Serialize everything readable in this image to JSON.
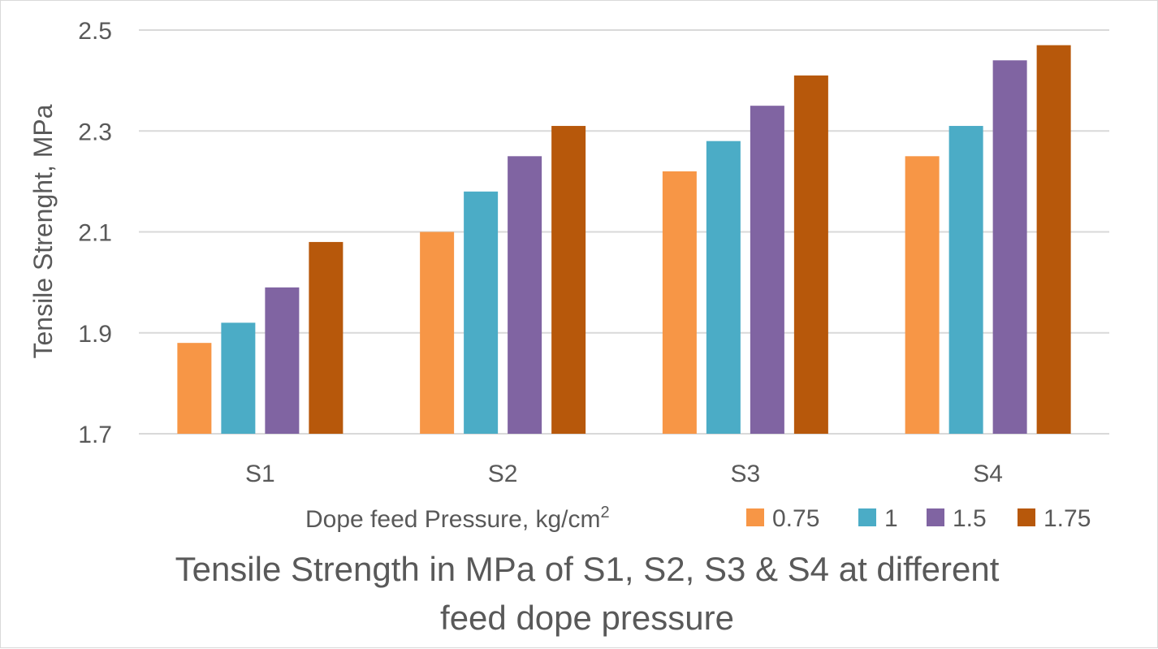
{
  "chart_data": {
    "type": "bar",
    "title": "Tensile Strength in MPa of S1, S2, S3 & S4 at different feed dope pressure",
    "title_lines": [
      "Tensile Strength in MPa of S1, S2, S3 & S4 at different",
      "feed dope pressure"
    ],
    "ylabel": "Tensile Strenght, MPa",
    "legend_title": "Dope feed Pressure, kg/cm",
    "legend_title_sup": "2",
    "legend_position": "bottom",
    "categories": [
      "S1",
      "S2",
      "S3",
      "S4"
    ],
    "ylim": [
      1.7,
      2.5
    ],
    "yticks": [
      "1.7",
      "1.9",
      "2.1",
      "2.3",
      "2.5"
    ],
    "grid": true,
    "series": [
      {
        "name": "0.75",
        "color": "#F79646",
        "values": [
          1.88,
          2.1,
          2.22,
          2.25
        ]
      },
      {
        "name": "1",
        "color": "#4BACC6",
        "values": [
          1.92,
          2.18,
          2.28,
          2.31
        ]
      },
      {
        "name": "1.5",
        "color": "#8064A2",
        "values": [
          1.99,
          2.25,
          2.35,
          2.44
        ]
      },
      {
        "name": "1.75",
        "color": "#B7580B",
        "values": [
          2.08,
          2.31,
          2.41,
          2.47
        ]
      }
    ],
    "gridline_color": "#d9d9d9"
  }
}
